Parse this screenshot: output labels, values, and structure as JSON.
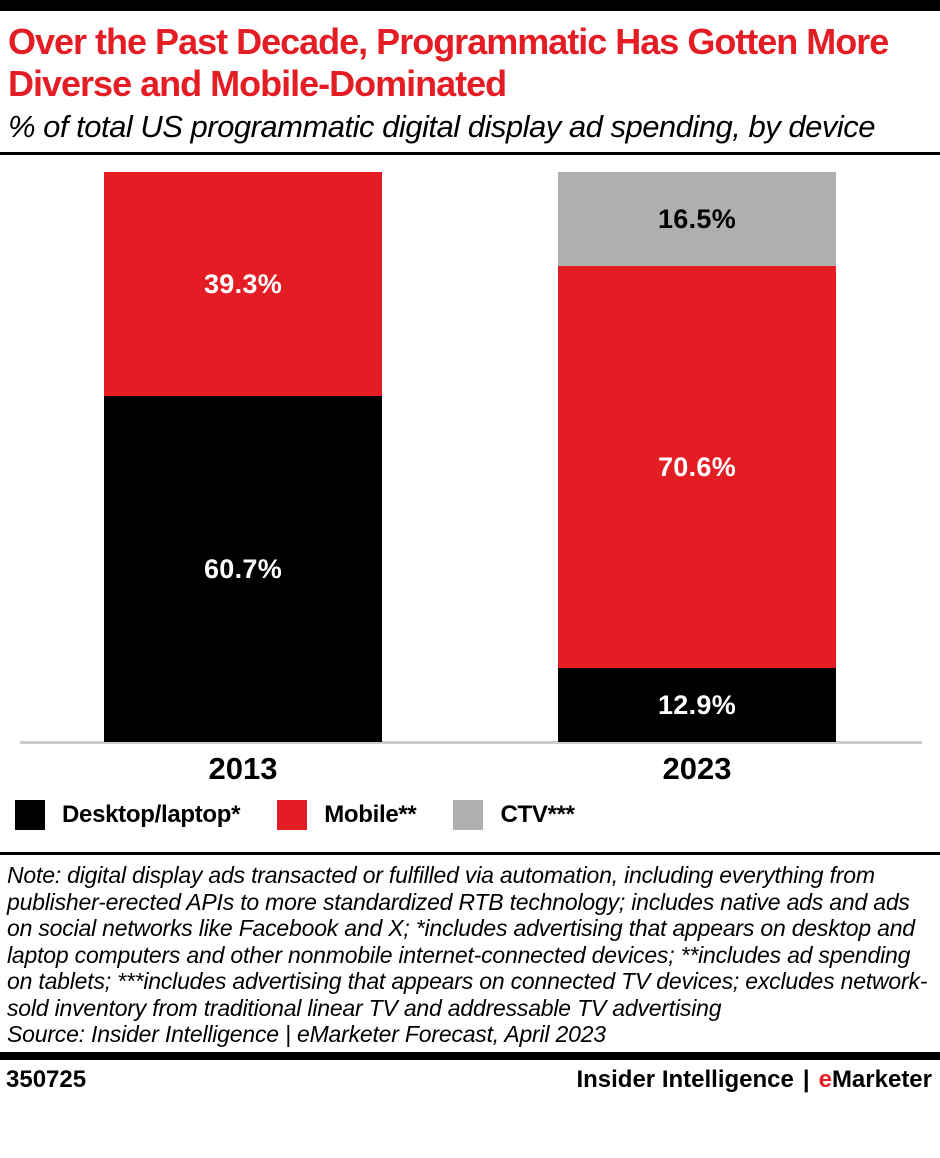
{
  "chart_data": {
    "type": "bar",
    "stacked": true,
    "title": "Over the Past Decade, Programmatic Has Gotten More Diverse and Mobile-Dominated",
    "subtitle": "% of total US programmatic digital display ad spending, by device",
    "categories": [
      "2013",
      "2023"
    ],
    "series": [
      {
        "name": "Desktop/laptop*",
        "color": "#000000",
        "label_color": "#FFFFFF",
        "values": [
          60.7,
          12.9
        ]
      },
      {
        "name": "Mobile**",
        "color": "#E41D25",
        "label_color": "#FFFFFF",
        "values": [
          39.3,
          70.6
        ]
      },
      {
        "name": "CTV***",
        "color": "#AFAFAF",
        "label_color": "#000000",
        "values": [
          0,
          16.5
        ]
      }
    ],
    "value_suffix": "%",
    "ylim": [
      0,
      100
    ],
    "grid": false,
    "y_axis_visible": false,
    "legend_position": "bottom-left"
  },
  "notes": {
    "note": "Note: digital display ads transacted or fulfilled via automation, including everything from publisher-erected APIs to more standardized RTB technology; includes native ads and ads on social networks like Facebook and X; *includes advertising that appears on desktop and laptop computers and other nonmobile internet-connected devices; **includes ad spending on tablets; ***includes advertising that appears on connected TV devices; excludes network-sold inventory from traditional linear TV and addressable TV advertising",
    "source": "Source: Insider Intelligence | eMarketer Forecast, April 2023"
  },
  "footer": {
    "chart_id": "350725",
    "brand_insider": "Insider Intelligence",
    "separator": "|",
    "emarketer_e": "e",
    "emarketer_rest": "Marketer"
  },
  "colors": {
    "accent_red": "#E41D25",
    "ctv_gray": "#AFAFAF",
    "axis_line_gray": "#CDCDCD",
    "black": "#000000"
  }
}
